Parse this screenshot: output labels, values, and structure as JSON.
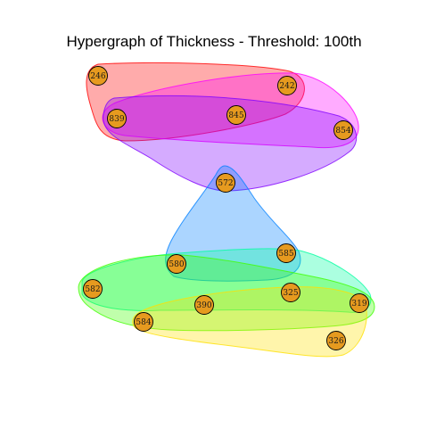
{
  "title": "Hypergraph of Thickness - Threshold: 100th",
  "nodes": [
    {
      "id": "246",
      "label": "246"
    },
    {
      "id": "242",
      "label": "242"
    },
    {
      "id": "839",
      "label": "839"
    },
    {
      "id": "845",
      "label": "845"
    },
    {
      "id": "854",
      "label": "854"
    },
    {
      "id": "572",
      "label": "572"
    },
    {
      "id": "580",
      "label": "580"
    },
    {
      "id": "585",
      "label": "585"
    },
    {
      "id": "582",
      "label": "582"
    },
    {
      "id": "390",
      "label": "390"
    },
    {
      "id": "325",
      "label": "325"
    },
    {
      "id": "319",
      "label": "319"
    },
    {
      "id": "584",
      "label": "584"
    },
    {
      "id": "326",
      "label": "326"
    }
  ],
  "hyperedges": [
    {
      "id": "edge-red",
      "members": [
        "246",
        "242",
        "839",
        "845"
      ],
      "color": "#FF0000"
    },
    {
      "id": "edge-magenta",
      "members": [
        "839",
        "845",
        "242",
        "854"
      ],
      "color": "#FF00FF"
    },
    {
      "id": "edge-violet",
      "members": [
        "839",
        "845",
        "854",
        "572"
      ],
      "color": "#8000FF"
    },
    {
      "id": "edge-blue",
      "members": [
        "572",
        "580",
        "585"
      ],
      "color": "#0080FF"
    },
    {
      "id": "edge-cyan",
      "members": [
        "580",
        "585",
        "582",
        "319"
      ],
      "color": "#00FFA0"
    },
    {
      "id": "edge-green",
      "members": [
        "582",
        "580",
        "390",
        "325",
        "319",
        "584"
      ],
      "color": "#40FF00"
    },
    {
      "id": "edge-yellow",
      "members": [
        "584",
        "390",
        "325",
        "319",
        "326"
      ],
      "color": "#FFE000"
    }
  ]
}
